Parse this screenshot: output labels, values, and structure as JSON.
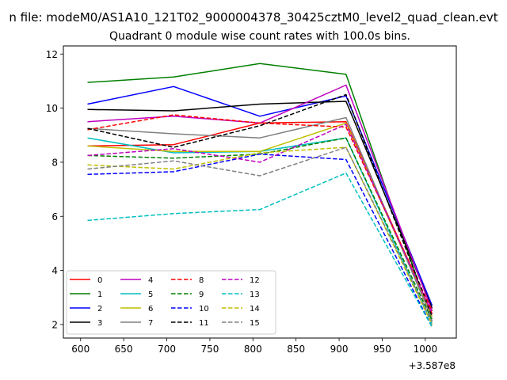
{
  "chart_data": {
    "type": "line",
    "suptitle": "n file: modeM0/AS1A10_121T02_9000004378_30425cztM0_level2_quad_clean.evt",
    "title": "Quadrant 0 module wise count rates with 100.0s bins.",
    "xlabel": "",
    "ylabel": "",
    "x_offset_label": "+3.587e8",
    "x": [
      608,
      708,
      808,
      908,
      1008
    ],
    "xlim": [
      580,
      1036
    ],
    "ylim": [
      1.5,
      12.3
    ],
    "xticks": [
      600,
      650,
      700,
      750,
      800,
      850,
      900,
      950,
      1000
    ],
    "yticks": [
      2,
      4,
      6,
      8,
      10,
      12
    ],
    "grid": false,
    "legend_position": "lower-left",
    "legend_columns": 4,
    "series": [
      {
        "name": "0",
        "color": "#ff0000",
        "dash": "solid",
        "values": [
          8.6,
          8.65,
          9.45,
          9.5,
          2.4
        ]
      },
      {
        "name": "1",
        "color": "#008000",
        "dash": "solid",
        "values": [
          10.95,
          11.15,
          11.65,
          11.25,
          2.1
        ]
      },
      {
        "name": "2",
        "color": "#0000ff",
        "dash": "solid",
        "values": [
          10.15,
          10.8,
          9.7,
          10.45,
          2.7
        ]
      },
      {
        "name": "3",
        "color": "#000000",
        "dash": "solid",
        "values": [
          9.95,
          9.9,
          10.15,
          10.25,
          2.6
        ]
      },
      {
        "name": "4",
        "color": "#bf00bf",
        "dash": "solid",
        "values": [
          9.5,
          9.7,
          9.45,
          10.85,
          2.5
        ]
      },
      {
        "name": "5",
        "color": "#00bfbf",
        "dash": "solid",
        "values": [
          8.9,
          8.35,
          8.4,
          8.9,
          2.0
        ]
      },
      {
        "name": "6",
        "color": "#bfbf00",
        "dash": "solid",
        "values": [
          8.6,
          8.4,
          8.4,
          9.45,
          2.3
        ]
      },
      {
        "name": "7",
        "color": "#808080",
        "dash": "solid",
        "values": [
          9.25,
          9.05,
          8.9,
          9.65,
          2.2
        ]
      },
      {
        "name": "8",
        "color": "#ff0000",
        "dash": "dashed",
        "values": [
          9.2,
          9.75,
          9.45,
          9.3,
          2.5
        ]
      },
      {
        "name": "9",
        "color": "#008000",
        "dash": "dashed",
        "values": [
          8.25,
          8.15,
          8.3,
          8.9,
          2.15
        ]
      },
      {
        "name": "10",
        "color": "#0000ff",
        "dash": "dashed",
        "values": [
          7.55,
          7.65,
          8.3,
          8.1,
          1.9
        ]
      },
      {
        "name": "11",
        "color": "#000000",
        "dash": "dashed",
        "values": [
          9.25,
          8.55,
          9.35,
          10.5,
          2.3
        ]
      },
      {
        "name": "12",
        "color": "#bf00bf",
        "dash": "dashed",
        "values": [
          8.25,
          8.5,
          8.0,
          9.4,
          2.4
        ]
      },
      {
        "name": "13",
        "color": "#00bfbf",
        "dash": "dashed",
        "values": [
          5.85,
          6.1,
          6.25,
          7.6,
          1.9
        ]
      },
      {
        "name": "14",
        "color": "#bfbf00",
        "dash": "dashed",
        "values": [
          7.9,
          7.75,
          8.35,
          8.55,
          2.0
        ]
      },
      {
        "name": "15",
        "color": "#808080",
        "dash": "dashed",
        "values": [
          7.75,
          8.05,
          7.5,
          8.55,
          2.1
        ]
      }
    ]
  }
}
